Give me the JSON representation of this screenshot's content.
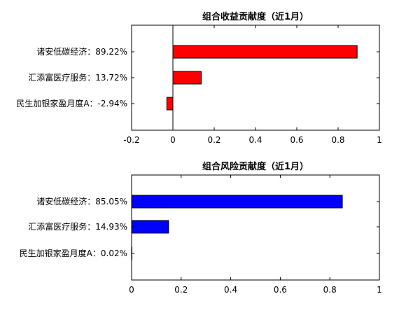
{
  "chart_data": [
    {
      "type": "bar",
      "orientation": "horizontal",
      "title": "组合收益贡献度（近1月）",
      "categories": [
        "诸安低碳经济：89.22%",
        "汇添富医疗服务：13.72%",
        "民生加银家盈月度A：-2.94%"
      ],
      "values": [
        0.8922,
        0.1372,
        -0.0294
      ],
      "xlim": [
        -0.2,
        1
      ],
      "xticks": [
        "-0.2",
        "0",
        "0.2",
        "0.4",
        "0.6",
        "0.8",
        "1"
      ],
      "zero_line": true,
      "grid": false,
      "bar_color": "#ff0000"
    },
    {
      "type": "bar",
      "orientation": "horizontal",
      "title": "组合风险贡献度（近1月）",
      "categories": [
        "诸安低碳经济：85.05%",
        "汇添富医疗服务：14.93%",
        "民生加银家盈月度A：0.02%"
      ],
      "values": [
        0.8505,
        0.1493,
        0.0002
      ],
      "xlim": [
        0,
        1
      ],
      "xticks": [
        "0",
        "0.2",
        "0.4",
        "0.6",
        "0.8",
        "1"
      ],
      "zero_line": false,
      "grid": false,
      "bar_color": "#0000ff"
    }
  ]
}
